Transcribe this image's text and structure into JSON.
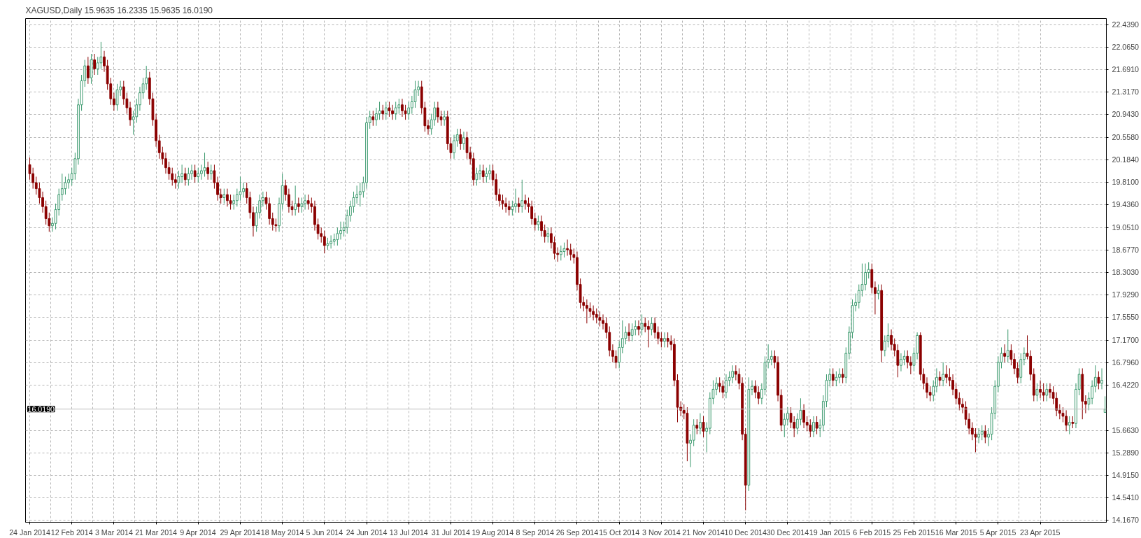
{
  "chart_data": {
    "type": "candlestick",
    "title": "XAGUSD,Daily  15.9635 16.2335 15.9635 16.0190",
    "categories": [
      "24 Jan 2014",
      null,
      null,
      null,
      null,
      null,
      null,
      null,
      null,
      null,
      null,
      null,
      null,
      "12 Feb 2014",
      null,
      null,
      null,
      null,
      null,
      null,
      null,
      null,
      null,
      null,
      null,
      null,
      "3 Mar 2014",
      null,
      null,
      null,
      null,
      null,
      null,
      null,
      null,
      null,
      null,
      null,
      null,
      "21 Mar 2014",
      null,
      null,
      null,
      null,
      null,
      null,
      null,
      null,
      null,
      null,
      null,
      null,
      "9 Apr 2014",
      null,
      null,
      null,
      null,
      null,
      null,
      null,
      null,
      null,
      null,
      null,
      null,
      "29 Apr 2014",
      null,
      null,
      null,
      null,
      null,
      null,
      null,
      null,
      null,
      null,
      null,
      null,
      "18 May 2014",
      null,
      null,
      null,
      null,
      null,
      null,
      null,
      null,
      null,
      null,
      null,
      null,
      "5 Jun 2014",
      null,
      null,
      null,
      null,
      null,
      null,
      null,
      null,
      null,
      null,
      null,
      null,
      "24 Jun 2014",
      null,
      null,
      null,
      null,
      null,
      null,
      null,
      null,
      null,
      null,
      null,
      null,
      "13 Jul 2014",
      null,
      null,
      null,
      null,
      null,
      null,
      null,
      null,
      null,
      null,
      null,
      null,
      "31 Jul 2014",
      null,
      null,
      null,
      null,
      null,
      null,
      null,
      null,
      null,
      null,
      null,
      null,
      "19 Aug 2014",
      null,
      null,
      null,
      null,
      null,
      null,
      null,
      null,
      null,
      null,
      null,
      null,
      "8 Sep 2014",
      null,
      null,
      null,
      null,
      null,
      null,
      null,
      null,
      null,
      null,
      null,
      null,
      "26 Sep 2014",
      null,
      null,
      null,
      null,
      null,
      null,
      null,
      null,
      null,
      null,
      null,
      null,
      "15 Oct 2014",
      null,
      null,
      null,
      null,
      null,
      null,
      null,
      null,
      null,
      null,
      null,
      null,
      "3 Nov 2014",
      null,
      null,
      null,
      null,
      null,
      null,
      null,
      null,
      null,
      null,
      null,
      null,
      "21 Nov 2014",
      null,
      null,
      null,
      null,
      null,
      null,
      null,
      null,
      null,
      null,
      null,
      null,
      "10 Dec 2014",
      null,
      null,
      null,
      null,
      null,
      null,
      null,
      null,
      null,
      null,
      null,
      null,
      "30 Dec 2014",
      null,
      null,
      null,
      null,
      null,
      null,
      null,
      null,
      null,
      null,
      null,
      null,
      "19 Jan 2015",
      null,
      null,
      null,
      null,
      null,
      null,
      null,
      null,
      null,
      null,
      null,
      null,
      "6 Feb 2015",
      null,
      null,
      null,
      null,
      null,
      null,
      null,
      null,
      null,
      null,
      null,
      null,
      "25 Feb 2015",
      null,
      null,
      null,
      null,
      null,
      null,
      null,
      null,
      null,
      null,
      null,
      null,
      "16 Mar 2015",
      null,
      null,
      null,
      null,
      null,
      null,
      null,
      null,
      null,
      null,
      null,
      null,
      "5 Apr 2015",
      null,
      null,
      null,
      null,
      null,
      null,
      null,
      null,
      null,
      null,
      null,
      null,
      "23 Apr 2015",
      null,
      null,
      null,
      null,
      null,
      null,
      null,
      null,
      null,
      null,
      null,
      null,
      null,
      null,
      null,
      null,
      null,
      null,
      null,
      null
    ],
    "ohlc": [
      [
        20.1,
        20.22,
        19.85,
        19.95
      ],
      [
        19.95,
        20.05,
        19.7,
        19.8
      ],
      [
        19.8,
        19.9,
        19.6,
        19.7
      ],
      [
        19.7,
        19.8,
        19.45,
        19.55
      ],
      [
        19.55,
        19.65,
        19.3,
        19.4
      ],
      [
        19.4,
        19.5,
        19.1,
        19.2
      ],
      [
        19.2,
        19.3,
        18.98,
        19.08
      ],
      [
        19.08,
        19.22,
        18.98,
        19.12
      ],
      [
        19.12,
        19.45,
        19.02,
        19.35
      ],
      [
        19.35,
        19.7,
        19.25,
        19.6
      ],
      [
        19.6,
        19.95,
        19.5,
        19.7
      ],
      [
        19.7,
        19.9,
        19.6,
        19.8
      ],
      [
        19.8,
        19.95,
        19.7,
        19.85
      ],
      [
        19.85,
        20.05,
        19.75,
        19.95
      ],
      [
        19.95,
        20.3,
        19.85,
        20.2
      ],
      [
        20.2,
        21.2,
        20.1,
        21.1
      ],
      [
        21.1,
        21.6,
        21.0,
        21.5
      ],
      [
        21.5,
        21.85,
        21.4,
        21.75
      ],
      [
        21.75,
        21.9,
        21.45,
        21.55
      ],
      [
        21.55,
        21.95,
        21.45,
        21.85
      ],
      [
        21.85,
        21.95,
        21.6,
        21.7
      ],
      [
        21.7,
        21.9,
        21.6,
        21.8
      ],
      [
        21.8,
        22.15,
        21.7,
        21.9
      ],
      [
        21.9,
        22.0,
        21.65,
        21.75
      ],
      [
        21.75,
        21.85,
        21.35,
        21.45
      ],
      [
        21.45,
        21.55,
        21.1,
        21.2
      ],
      [
        21.2,
        21.3,
        21.0,
        21.1
      ],
      [
        21.1,
        21.45,
        21.0,
        21.35
      ],
      [
        21.35,
        21.5,
        21.25,
        21.4
      ],
      [
        21.4,
        21.5,
        21.1,
        21.2
      ],
      [
        21.2,
        21.3,
        20.95,
        21.05
      ],
      [
        21.05,
        21.15,
        20.75,
        20.85
      ],
      [
        20.85,
        21.0,
        20.6,
        20.9
      ],
      [
        20.9,
        21.2,
        20.8,
        21.1
      ],
      [
        21.1,
        21.4,
        21.0,
        21.3
      ],
      [
        21.3,
        21.55,
        21.2,
        21.45
      ],
      [
        21.45,
        21.75,
        21.35,
        21.55
      ],
      [
        21.55,
        21.65,
        21.1,
        21.2
      ],
      [
        21.2,
        21.3,
        20.75,
        20.85
      ],
      [
        20.85,
        20.95,
        20.4,
        20.5
      ],
      [
        20.5,
        20.6,
        20.2,
        20.3
      ],
      [
        20.3,
        20.4,
        20.1,
        20.2
      ],
      [
        20.2,
        20.3,
        19.95,
        20.05
      ],
      [
        20.05,
        20.15,
        19.85,
        19.95
      ],
      [
        19.95,
        20.05,
        19.75,
        19.85
      ],
      [
        19.85,
        19.95,
        19.7,
        19.8
      ],
      [
        19.8,
        20.0,
        19.7,
        19.9
      ],
      [
        19.9,
        20.1,
        19.8,
        19.95
      ],
      [
        19.95,
        20.05,
        19.75,
        19.85
      ],
      [
        19.85,
        20.05,
        19.75,
        19.95
      ],
      [
        19.95,
        20.1,
        19.85,
        20.0
      ],
      [
        20.0,
        20.1,
        19.8,
        19.9
      ],
      [
        19.9,
        20.05,
        19.8,
        19.95
      ],
      [
        19.95,
        20.1,
        19.85,
        20.0
      ],
      [
        20.0,
        20.3,
        19.9,
        20.05
      ],
      [
        20.05,
        20.15,
        19.85,
        19.95
      ],
      [
        19.95,
        20.1,
        19.85,
        20.0
      ],
      [
        20.0,
        20.1,
        19.7,
        19.8
      ],
      [
        19.8,
        19.9,
        19.5,
        19.6
      ],
      [
        19.6,
        19.7,
        19.45,
        19.55
      ],
      [
        19.55,
        19.7,
        19.45,
        19.6
      ],
      [
        19.6,
        19.7,
        19.4,
        19.5
      ],
      [
        19.5,
        19.6,
        19.35,
        19.45
      ],
      [
        19.45,
        19.6,
        19.35,
        19.5
      ],
      [
        19.5,
        19.7,
        19.4,
        19.6
      ],
      [
        19.6,
        19.9,
        19.5,
        19.65
      ],
      [
        19.65,
        19.8,
        19.55,
        19.7
      ],
      [
        19.7,
        19.8,
        19.45,
        19.55
      ],
      [
        19.55,
        19.65,
        19.2,
        19.3
      ],
      [
        19.3,
        19.4,
        18.9,
        19.08
      ],
      [
        19.08,
        19.4,
        18.98,
        19.3
      ],
      [
        19.3,
        19.6,
        19.2,
        19.5
      ],
      [
        19.5,
        19.65,
        19.4,
        19.55
      ],
      [
        19.55,
        19.65,
        19.35,
        19.45
      ],
      [
        19.45,
        19.55,
        19.1,
        19.2
      ],
      [
        19.2,
        19.3,
        19.0,
        19.1
      ],
      [
        19.1,
        19.2,
        18.98,
        19.08
      ],
      [
        19.08,
        19.55,
        18.98,
        19.45
      ],
      [
        19.45,
        19.95,
        19.35,
        19.75
      ],
      [
        19.75,
        19.85,
        19.5,
        19.6
      ],
      [
        19.6,
        19.7,
        19.3,
        19.4
      ],
      [
        19.4,
        19.5,
        19.25,
        19.35
      ],
      [
        19.35,
        19.75,
        19.25,
        19.45
      ],
      [
        19.45,
        19.55,
        19.3,
        19.4
      ],
      [
        19.4,
        19.55,
        19.3,
        19.45
      ],
      [
        19.45,
        19.6,
        19.35,
        19.5
      ],
      [
        19.5,
        19.6,
        19.35,
        19.45
      ],
      [
        19.45,
        19.55,
        19.3,
        19.4
      ],
      [
        19.4,
        19.5,
        19.0,
        19.1
      ],
      [
        19.1,
        19.2,
        18.85,
        18.95
      ],
      [
        18.95,
        19.05,
        18.8,
        18.9
      ],
      [
        18.9,
        19.0,
        18.62,
        18.75
      ],
      [
        18.75,
        18.88,
        18.68,
        18.78
      ],
      [
        18.78,
        18.92,
        18.7,
        18.82
      ],
      [
        18.82,
        18.95,
        18.75,
        18.85
      ],
      [
        18.85,
        19.05,
        18.75,
        18.95
      ],
      [
        18.95,
        19.15,
        18.85,
        19.0
      ],
      [
        19.0,
        19.15,
        18.9,
        19.05
      ],
      [
        19.05,
        19.35,
        18.95,
        19.25
      ],
      [
        19.25,
        19.5,
        19.15,
        19.4
      ],
      [
        19.4,
        19.65,
        19.3,
        19.55
      ],
      [
        19.55,
        19.75,
        19.45,
        19.6
      ],
      [
        19.6,
        19.8,
        19.4,
        19.65
      ],
      [
        19.65,
        19.9,
        19.55,
        19.8
      ],
      [
        19.8,
        20.9,
        19.7,
        20.8
      ],
      [
        20.8,
        21.0,
        20.7,
        20.9
      ],
      [
        20.9,
        21.0,
        20.75,
        20.85
      ],
      [
        20.85,
        21.05,
        20.75,
        20.95
      ],
      [
        20.95,
        21.15,
        20.85,
        21.0
      ],
      [
        21.0,
        21.1,
        20.85,
        20.95
      ],
      [
        20.95,
        21.15,
        20.85,
        21.05
      ],
      [
        21.05,
        21.15,
        20.9,
        21.0
      ],
      [
        21.0,
        21.1,
        20.85,
        20.95
      ],
      [
        20.95,
        21.15,
        20.85,
        21.05
      ],
      [
        21.05,
        21.2,
        20.95,
        21.1
      ],
      [
        21.1,
        21.2,
        20.9,
        21.0
      ],
      [
        21.0,
        21.1,
        20.85,
        20.95
      ],
      [
        20.95,
        21.15,
        20.85,
        21.05
      ],
      [
        21.05,
        21.25,
        20.95,
        21.15
      ],
      [
        21.15,
        21.5,
        21.05,
        21.35
      ],
      [
        21.35,
        21.5,
        21.25,
        21.4
      ],
      [
        21.4,
        21.5,
        20.95,
        21.05
      ],
      [
        21.05,
        21.15,
        20.65,
        20.75
      ],
      [
        20.75,
        20.85,
        20.6,
        20.7
      ],
      [
        20.7,
        20.95,
        20.6,
        20.85
      ],
      [
        20.85,
        21.15,
        20.75,
        21.05
      ],
      [
        21.05,
        21.15,
        20.8,
        20.9
      ],
      [
        20.9,
        21.0,
        20.75,
        20.85
      ],
      [
        20.85,
        21.0,
        20.75,
        20.9
      ],
      [
        20.9,
        21.0,
        20.35,
        20.45
      ],
      [
        20.45,
        20.55,
        20.2,
        20.3
      ],
      [
        20.3,
        20.6,
        20.2,
        20.5
      ],
      [
        20.5,
        20.7,
        20.4,
        20.6
      ],
      [
        20.6,
        20.7,
        20.35,
        20.45
      ],
      [
        20.45,
        20.65,
        20.35,
        20.55
      ],
      [
        20.55,
        20.65,
        20.2,
        20.3
      ],
      [
        20.3,
        20.4,
        20.1,
        20.2
      ],
      [
        20.2,
        20.3,
        19.75,
        19.85
      ],
      [
        19.85,
        20.05,
        19.75,
        19.95
      ],
      [
        19.95,
        20.1,
        19.85,
        20.0
      ],
      [
        20.0,
        20.1,
        19.8,
        19.9
      ],
      [
        19.9,
        20.05,
        19.8,
        19.95
      ],
      [
        19.95,
        20.1,
        19.85,
        20.0
      ],
      [
        20.0,
        20.1,
        19.75,
        19.85
      ],
      [
        19.85,
        19.95,
        19.5,
        19.6
      ],
      [
        19.6,
        19.7,
        19.4,
        19.5
      ],
      [
        19.5,
        19.6,
        19.35,
        19.45
      ],
      [
        19.45,
        19.55,
        19.3,
        19.4
      ],
      [
        19.4,
        19.5,
        19.25,
        19.35
      ],
      [
        19.35,
        19.5,
        19.25,
        19.4
      ],
      [
        19.4,
        19.7,
        19.3,
        19.45
      ],
      [
        19.45,
        19.55,
        19.3,
        19.4
      ],
      [
        19.4,
        19.85,
        19.3,
        19.5
      ],
      [
        19.5,
        19.6,
        19.35,
        19.45
      ],
      [
        19.45,
        19.55,
        19.3,
        19.4
      ],
      [
        19.4,
        19.5,
        19.1,
        19.2
      ],
      [
        19.2,
        19.3,
        19.0,
        19.1
      ],
      [
        19.1,
        19.25,
        19.0,
        19.15
      ],
      [
        19.15,
        19.25,
        18.9,
        19.0
      ],
      [
        19.0,
        19.1,
        18.8,
        18.9
      ],
      [
        18.9,
        19.05,
        18.8,
        18.95
      ],
      [
        18.95,
        19.05,
        18.7,
        18.8
      ],
      [
        18.8,
        18.9,
        18.52,
        18.62
      ],
      [
        18.62,
        18.72,
        18.48,
        18.6
      ],
      [
        18.6,
        18.75,
        18.5,
        18.65
      ],
      [
        18.65,
        18.8,
        18.55,
        18.7
      ],
      [
        18.7,
        18.85,
        18.58,
        18.68
      ],
      [
        18.68,
        18.78,
        18.5,
        18.6
      ],
      [
        18.6,
        18.7,
        18.45,
        18.55
      ],
      [
        18.55,
        18.65,
        18.0,
        18.1
      ],
      [
        18.1,
        18.2,
        17.7,
        17.8
      ],
      [
        17.8,
        17.9,
        17.65,
        17.75
      ],
      [
        17.75,
        17.85,
        17.45,
        17.7
      ],
      [
        17.7,
        17.8,
        17.55,
        17.65
      ],
      [
        17.65,
        17.75,
        17.5,
        17.6
      ],
      [
        17.6,
        17.7,
        17.45,
        17.55
      ],
      [
        17.55,
        17.65,
        17.4,
        17.5
      ],
      [
        17.5,
        17.6,
        17.35,
        17.45
      ],
      [
        17.45,
        17.55,
        17.2,
        17.3
      ],
      [
        17.3,
        17.4,
        16.9,
        17.0
      ],
      [
        17.0,
        17.1,
        16.8,
        16.9
      ],
      [
        16.9,
        17.0,
        16.7,
        16.8
      ],
      [
        16.8,
        17.15,
        16.7,
        17.05
      ],
      [
        17.05,
        17.5,
        16.95,
        17.2
      ],
      [
        17.2,
        17.4,
        17.1,
        17.3
      ],
      [
        17.3,
        17.45,
        17.15,
        17.25
      ],
      [
        17.25,
        17.45,
        17.15,
        17.35
      ],
      [
        17.35,
        17.5,
        17.25,
        17.4
      ],
      [
        17.4,
        17.5,
        17.25,
        17.35
      ],
      [
        17.35,
        17.6,
        17.25,
        17.45
      ],
      [
        17.45,
        17.55,
        17.3,
        17.4
      ],
      [
        17.4,
        17.5,
        17.05,
        17.35
      ],
      [
        17.35,
        17.55,
        17.25,
        17.45
      ],
      [
        17.45,
        17.55,
        17.2,
        17.3
      ],
      [
        17.3,
        17.4,
        17.1,
        17.2
      ],
      [
        17.2,
        17.3,
        17.05,
        17.15
      ],
      [
        17.15,
        17.3,
        17.05,
        17.2
      ],
      [
        17.2,
        17.3,
        17.05,
        17.15
      ],
      [
        17.15,
        17.25,
        17.0,
        17.1
      ],
      [
        17.1,
        17.2,
        16.4,
        16.5
      ],
      [
        16.5,
        16.6,
        15.8,
        16.05
      ],
      [
        16.05,
        16.15,
        15.9,
        16.0
      ],
      [
        16.0,
        16.1,
        15.85,
        15.95
      ],
      [
        15.95,
        16.05,
        15.15,
        15.45
      ],
      [
        15.45,
        15.6,
        15.05,
        15.5
      ],
      [
        15.5,
        15.85,
        15.4,
        15.75
      ],
      [
        15.75,
        15.85,
        15.6,
        15.7
      ],
      [
        15.7,
        15.95,
        15.6,
        15.8
      ],
      [
        15.8,
        15.9,
        15.55,
        15.65
      ],
      [
        15.65,
        15.8,
        15.3,
        15.7
      ],
      [
        15.7,
        16.3,
        15.6,
        16.2
      ],
      [
        16.2,
        16.5,
        16.1,
        16.35
      ],
      [
        16.35,
        16.55,
        16.25,
        16.45
      ],
      [
        16.45,
        16.55,
        16.3,
        16.4
      ],
      [
        16.4,
        16.5,
        16.2,
        16.3
      ],
      [
        16.3,
        16.6,
        16.2,
        16.5
      ],
      [
        16.5,
        16.65,
        16.4,
        16.55
      ],
      [
        16.55,
        16.75,
        16.45,
        16.65
      ],
      [
        16.65,
        16.75,
        16.5,
        16.6
      ],
      [
        16.6,
        16.7,
        16.35,
        16.45
      ],
      [
        16.45,
        16.55,
        15.5,
        15.6
      ],
      [
        15.6,
        15.7,
        14.33,
        14.75
      ],
      [
        14.75,
        16.55,
        14.65,
        16.35
      ],
      [
        16.35,
        16.5,
        16.25,
        16.4
      ],
      [
        16.4,
        16.5,
        16.2,
        16.3
      ],
      [
        16.3,
        16.4,
        16.1,
        16.2
      ],
      [
        16.2,
        16.45,
        16.1,
        16.35
      ],
      [
        16.35,
        16.9,
        16.25,
        16.8
      ],
      [
        16.8,
        17.1,
        16.7,
        16.85
      ],
      [
        16.85,
        17.0,
        16.75,
        16.9
      ],
      [
        16.9,
        17.0,
        16.7,
        16.8
      ],
      [
        16.8,
        16.9,
        16.15,
        16.25
      ],
      [
        16.25,
        16.35,
        15.65,
        15.75
      ],
      [
        15.75,
        15.95,
        15.55,
        15.85
      ],
      [
        15.85,
        16.05,
        15.75,
        15.95
      ],
      [
        15.95,
        16.05,
        15.7,
        15.8
      ],
      [
        15.8,
        15.9,
        15.55,
        15.7
      ],
      [
        15.7,
        15.95,
        15.6,
        15.85
      ],
      [
        15.85,
        16.2,
        15.75,
        16.0
      ],
      [
        16.0,
        16.1,
        15.7,
        15.8
      ],
      [
        15.8,
        15.9,
        15.65,
        15.75
      ],
      [
        15.75,
        15.85,
        15.55,
        15.65
      ],
      [
        15.65,
        15.9,
        15.55,
        15.8
      ],
      [
        15.8,
        15.9,
        15.6,
        15.7
      ],
      [
        15.7,
        15.85,
        15.55,
        15.75
      ],
      [
        15.75,
        16.25,
        15.65,
        16.15
      ],
      [
        16.15,
        16.6,
        16.05,
        16.5
      ],
      [
        16.5,
        16.7,
        16.4,
        16.6
      ],
      [
        16.6,
        16.7,
        16.4,
        16.5
      ],
      [
        16.5,
        16.65,
        16.4,
        16.55
      ],
      [
        16.55,
        16.7,
        16.45,
        16.6
      ],
      [
        16.6,
        16.7,
        16.45,
        16.55
      ],
      [
        16.55,
        17.05,
        16.45,
        16.95
      ],
      [
        16.95,
        17.4,
        16.85,
        17.3
      ],
      [
        17.3,
        17.85,
        17.2,
        17.75
      ],
      [
        17.75,
        17.95,
        17.65,
        17.8
      ],
      [
        17.8,
        18.1,
        17.7,
        18.0
      ],
      [
        18.0,
        18.45,
        17.9,
        18.1
      ],
      [
        18.1,
        18.45,
        18.0,
        18.3
      ],
      [
        18.3,
        18.47,
        18.2,
        18.35
      ],
      [
        18.35,
        18.45,
        17.95,
        18.05
      ],
      [
        18.05,
        18.15,
        17.6,
        17.95
      ],
      [
        17.95,
        18.1,
        17.85,
        18.0
      ],
      [
        18.0,
        18.1,
        16.8,
        17.0
      ],
      [
        17.0,
        17.25,
        16.9,
        17.15
      ],
      [
        17.15,
        17.45,
        17.05,
        17.25
      ],
      [
        17.25,
        17.35,
        17.0,
        17.1
      ],
      [
        17.1,
        17.2,
        16.9,
        17.0
      ],
      [
        17.0,
        17.1,
        16.55,
        16.75
      ],
      [
        16.75,
        16.95,
        16.65,
        16.85
      ],
      [
        16.85,
        17.0,
        16.75,
        16.9
      ],
      [
        16.9,
        17.0,
        16.7,
        16.8
      ],
      [
        16.8,
        16.9,
        16.6,
        16.75
      ],
      [
        16.75,
        17.05,
        16.65,
        16.95
      ],
      [
        16.95,
        17.3,
        16.85,
        17.25
      ],
      [
        17.25,
        17.3,
        16.5,
        16.6
      ],
      [
        16.6,
        16.7,
        16.35,
        16.45
      ],
      [
        16.45,
        16.55,
        16.2,
        16.3
      ],
      [
        16.3,
        16.4,
        16.15,
        16.25
      ],
      [
        16.25,
        16.5,
        16.15,
        16.4
      ],
      [
        16.4,
        16.7,
        16.3,
        16.55
      ],
      [
        16.55,
        16.65,
        16.4,
        16.5
      ],
      [
        16.5,
        16.8,
        16.4,
        16.6
      ],
      [
        16.6,
        16.75,
        16.45,
        16.55
      ],
      [
        16.55,
        16.7,
        16.4,
        16.5
      ],
      [
        16.5,
        16.6,
        16.25,
        16.35
      ],
      [
        16.35,
        16.45,
        16.1,
        16.2
      ],
      [
        16.2,
        16.3,
        16.0,
        16.1
      ],
      [
        16.1,
        16.2,
        15.95,
        16.05
      ],
      [
        16.05,
        16.15,
        15.75,
        15.85
      ],
      [
        15.85,
        15.95,
        15.6,
        15.7
      ],
      [
        15.7,
        15.8,
        15.5,
        15.6
      ],
      [
        15.6,
        15.7,
        15.3,
        15.55
      ],
      [
        15.55,
        15.7,
        15.45,
        15.6
      ],
      [
        15.6,
        15.75,
        15.5,
        15.65
      ],
      [
        15.65,
        15.75,
        15.45,
        15.55
      ],
      [
        15.55,
        15.7,
        15.4,
        15.6
      ],
      [
        15.6,
        16.05,
        15.5,
        15.95
      ],
      [
        15.95,
        16.5,
        15.85,
        16.4
      ],
      [
        16.4,
        16.9,
        16.3,
        16.8
      ],
      [
        16.8,
        17.05,
        16.7,
        16.95
      ],
      [
        16.95,
        17.1,
        16.8,
        16.9
      ],
      [
        16.9,
        17.35,
        16.8,
        17.0
      ],
      [
        17.0,
        17.1,
        16.75,
        16.85
      ],
      [
        16.85,
        16.95,
        16.6,
        16.7
      ],
      [
        16.7,
        16.8,
        16.45,
        16.55
      ],
      [
        16.55,
        16.95,
        16.45,
        16.85
      ],
      [
        16.85,
        17.05,
        16.75,
        16.95
      ],
      [
        16.95,
        17.25,
        16.85,
        16.9
      ],
      [
        16.9,
        17.0,
        16.5,
        16.6
      ],
      [
        16.6,
        16.7,
        16.15,
        16.25
      ],
      [
        16.25,
        16.45,
        16.15,
        16.35
      ],
      [
        16.35,
        16.5,
        16.2,
        16.3
      ],
      [
        16.3,
        16.45,
        16.15,
        16.25
      ],
      [
        16.25,
        16.45,
        16.15,
        16.35
      ],
      [
        16.35,
        16.45,
        16.2,
        16.3
      ],
      [
        16.3,
        16.4,
        16.1,
        16.2
      ],
      [
        16.2,
        16.3,
        15.9,
        16.0
      ],
      [
        16.0,
        16.1,
        15.85,
        15.95
      ],
      [
        15.95,
        16.05,
        15.8,
        15.9
      ],
      [
        15.9,
        16.0,
        15.65,
        15.75
      ],
      [
        15.75,
        15.9,
        15.6,
        15.8
      ],
      [
        15.8,
        15.9,
        15.7,
        15.78
      ],
      [
        15.78,
        16.45,
        15.7,
        16.35
      ],
      [
        16.35,
        16.7,
        16.25,
        16.6
      ],
      [
        16.6,
        16.7,
        15.85,
        16.15
      ],
      [
        16.15,
        16.25,
        15.95,
        16.1
      ],
      [
        16.1,
        16.3,
        16.0,
        16.2
      ],
      [
        16.2,
        16.5,
        16.1,
        16.4
      ],
      [
        16.4,
        16.75,
        16.3,
        16.55
      ],
      [
        16.55,
        16.65,
        16.35,
        16.45
      ],
      [
        16.45,
        16.7,
        16.35,
        16.5
      ],
      [
        15.9635,
        16.2335,
        15.9635,
        16.019
      ]
    ],
    "colors": [
      "#8b0000",
      "#8b0000",
      "#8b0000",
      "#8b0000",
      "#8b0000",
      "#8b0000",
      "#8b0000",
      "#3c9a6e",
      "#3c9a6e",
      "#3c9a6e",
      "#3c9a6e",
      "#3c9a6e",
      "#3c9a6e",
      "#3c9a6e",
      "#3c9a6e",
      "#3c9a6e",
      "#3c9a6e",
      "#3c9a6e",
      "#8b0000",
      "#3c9a6e",
      "#8b0000",
      "#3c9a6e",
      "#3c9a6e",
      "#8b0000",
      "#8b0000",
      "#8b0000",
      "#8b0000",
      "#3c9a6e",
      "#3c9a6e",
      "#8b0000",
      "#8b0000",
      "#8b0000",
      "#3c9a6e",
      "#3c9a6e",
      "#3c9a6e",
      "#3c9a6e",
      "#3c9a6e",
      "#8b0000",
      "#8b0000",
      "#8b0000",
      "#8b0000",
      "#8b0000",
      "#8b0000",
      "#8b0000",
      "#8b0000",
      "#8b0000",
      "#3c9a6e",
      "#3c9a6e",
      "#8b0000",
      "#3c9a6e",
      "#3c9a6e",
      "#8b0000",
      "#3c9a6e",
      "#3c9a6e",
      "#3c9a6e",
      "#8b0000",
      "#3c9a6e",
      "#8b0000",
      "#8b0000",
      "#8b0000",
      "#3c9a6e",
      "#8b0000",
      "#8b0000",
      "#3c9a6e",
      "#3c9a6e",
      "#3c9a6e",
      "#3c9a6e",
      "#8b0000",
      "#8b0000",
      "#8b0000",
      "#3c9a6e",
      "#3c9a6e",
      "#3c9a6e",
      "#8b0000",
      "#8b0000",
      "#8b0000",
      "#8b0000",
      "#3c9a6e",
      "#3c9a6e",
      "#8b0000",
      "#8b0000",
      "#8b0000",
      "#3c9a6e",
      "#8b0000",
      "#3c9a6e",
      "#3c9a6e",
      "#8b0000",
      "#8b0000",
      "#8b0000",
      "#8b0000",
      "#8b0000",
      "#8b0000",
      "#3c9a6e",
      "#3c9a6e",
      "#3c9a6e",
      "#3c9a6e",
      "#3c9a6e",
      "#3c9a6e",
      "#3c9a6e",
      "#3c9a6e",
      "#3c9a6e",
      "#3c9a6e",
      "#3c9a6e",
      "#3c9a6e",
      "#3c9a6e",
      "#3c9a6e",
      "#8b0000",
      "#3c9a6e",
      "#3c9a6e",
      "#8b0000",
      "#3c9a6e",
      "#8b0000",
      "#8b0000",
      "#3c9a6e",
      "#3c9a6e",
      "#8b0000",
      "#8b0000",
      "#3c9a6e",
      "#3c9a6e",
      "#3c9a6e",
      "#3c9a6e",
      "#8b0000",
      "#8b0000",
      "#8b0000",
      "#3c9a6e",
      "#3c9a6e",
      "#8b0000",
      "#8b0000",
      "#3c9a6e",
      "#8b0000",
      "#8b0000",
      "#3c9a6e",
      "#3c9a6e",
      "#8b0000",
      "#3c9a6e",
      "#8b0000",
      "#8b0000",
      "#8b0000",
      "#3c9a6e",
      "#3c9a6e",
      "#8b0000",
      "#3c9a6e",
      "#3c9a6e",
      "#8b0000",
      "#8b0000",
      "#8b0000",
      "#8b0000",
      "#8b0000",
      "#8b0000",
      "#3c9a6e",
      "#3c9a6e",
      "#8b0000",
      "#3c9a6e",
      "#8b0000",
      "#8b0000",
      "#8b0000",
      "#8b0000",
      "#3c9a6e",
      "#8b0000",
      "#8b0000",
      "#3c9a6e",
      "#8b0000",
      "#8b0000",
      "#8b0000",
      "#3c9a6e",
      "#3c9a6e",
      "#8b0000",
      "#8b0000",
      "#8b0000",
      "#8b0000",
      "#8b0000",
      "#8b0000",
      "#8b0000",
      "#8b0000",
      "#8b0000",
      "#8b0000",
      "#8b0000",
      "#8b0000",
      "#8b0000",
      "#8b0000",
      "#8b0000",
      "#8b0000",
      "#3c9a6e",
      "#3c9a6e",
      "#3c9a6e",
      "#8b0000",
      "#3c9a6e",
      "#3c9a6e",
      "#8b0000",
      "#3c9a6e",
      "#8b0000",
      "#8b0000",
      "#3c9a6e",
      "#8b0000",
      "#8b0000",
      "#8b0000",
      "#3c9a6e",
      "#8b0000",
      "#8b0000",
      "#8b0000",
      "#8b0000",
      "#8b0000",
      "#8b0000",
      "#8b0000",
      "#3c9a6e",
      "#3c9a6e",
      "#8b0000",
      "#3c9a6e",
      "#8b0000",
      "#3c9a6e",
      "#3c9a6e",
      "#3c9a6e",
      "#3c9a6e",
      "#8b0000",
      "#8b0000",
      "#3c9a6e",
      "#3c9a6e",
      "#3c9a6e",
      "#8b0000",
      "#8b0000",
      "#8b0000",
      "#8b0000",
      "#3c9a6e",
      "#3c9a6e",
      "#8b0000",
      "#8b0000",
      "#3c9a6e",
      "#3c9a6e",
      "#3c9a6e",
      "#3c9a6e",
      "#8b0000",
      "#8b0000",
      "#8b0000",
      "#3c9a6e",
      "#3c9a6e",
      "#8b0000",
      "#8b0000",
      "#3c9a6e",
      "#3c9a6e",
      "#8b0000",
      "#8b0000",
      "#8b0000",
      "#3c9a6e",
      "#8b0000",
      "#3c9a6e",
      "#3c9a6e",
      "#3c9a6e",
      "#3c9a6e",
      "#8b0000",
      "#3c9a6e",
      "#3c9a6e",
      "#8b0000",
      "#3c9a6e",
      "#3c9a6e",
      "#3c9a6e",
      "#3c9a6e",
      "#3c9a6e",
      "#3c9a6e",
      "#3c9a6e",
      "#3c9a6e",
      "#8b0000",
      "#8b0000",
      "#3c9a6e",
      "#8b0000",
      "#3c9a6e",
      "#3c9a6e",
      "#8b0000",
      "#8b0000",
      "#8b0000",
      "#3c9a6e",
      "#3c9a6e",
      "#8b0000",
      "#8b0000",
      "#3c9a6e",
      "#3c9a6e",
      "#8b0000",
      "#8b0000",
      "#8b0000",
      "#8b0000",
      "#3c9a6e",
      "#3c9a6e",
      "#8b0000",
      "#3c9a6e",
      "#8b0000",
      "#8b0000",
      "#8b0000",
      "#8b0000",
      "#8b0000",
      "#8b0000",
      "#8b0000",
      "#8b0000",
      "#8b0000",
      "#8b0000",
      "#3c9a6e",
      "#3c9a6e",
      "#8b0000",
      "#3c9a6e",
      "#3c9a6e",
      "#3c9a6e",
      "#3c9a6e",
      "#3c9a6e",
      "#8b0000",
      "#3c9a6e",
      "#8b0000",
      "#8b0000",
      "#8b0000",
      "#3c9a6e",
      "#3c9a6e",
      "#8b0000",
      "#8b0000",
      "#8b0000",
      "#3c9a6e",
      "#8b0000",
      "#8b0000",
      "#3c9a6e",
      "#8b0000",
      "#8b0000",
      "#8b0000",
      "#8b0000",
      "#8b0000",
      "#8b0000",
      "#3c9a6e",
      "#8b0000",
      "#3c9a6e",
      "#3c9a6e",
      "#8b0000",
      "#8b0000",
      "#3c9a6e",
      "#3c9a6e",
      "#3c9a6e",
      "#8b0000",
      "#3c9a6e",
      "#3c9a6e"
    ],
    "ylim": [
      14.13,
      22.54
    ],
    "yticks": [
      {
        "value": 22.439,
        "label": "22.4390"
      },
      {
        "value": 22.065,
        "label": "22.0650"
      },
      {
        "value": 21.691,
        "label": "21.6910"
      },
      {
        "value": 21.317,
        "label": "21.3170"
      },
      {
        "value": 20.943,
        "label": "20.9430"
      },
      {
        "value": 20.558,
        "label": "20.5580"
      },
      {
        "value": 20.184,
        "label": "20.1840"
      },
      {
        "value": 19.81,
        "label": "19.8100"
      },
      {
        "value": 19.436,
        "label": "19.4360"
      },
      {
        "value": 19.051,
        "label": "19.0510"
      },
      {
        "value": 18.677,
        "label": "18.6770"
      },
      {
        "value": 18.303,
        "label": "18.3030"
      },
      {
        "value": 17.929,
        "label": "17.9290"
      },
      {
        "value": 17.555,
        "label": "17.5550"
      },
      {
        "value": 17.17,
        "label": "17.1700"
      },
      {
        "value": 16.796,
        "label": "16.7960"
      },
      {
        "value": 16.422,
        "label": "16.4220"
      },
      {
        "value": 15.663,
        "label": "15.6630"
      },
      {
        "value": 15.289,
        "label": "15.2890"
      },
      {
        "value": 14.915,
        "label": "14.9150"
      },
      {
        "value": 14.541,
        "label": "14.5410"
      },
      {
        "value": 14.167,
        "label": "14.1670"
      }
    ],
    "ref_lines": [
      {
        "axis": "y",
        "value": 16.019,
        "label": "16.0190",
        "color": "#c0c0c0"
      }
    ],
    "grid": true
  }
}
